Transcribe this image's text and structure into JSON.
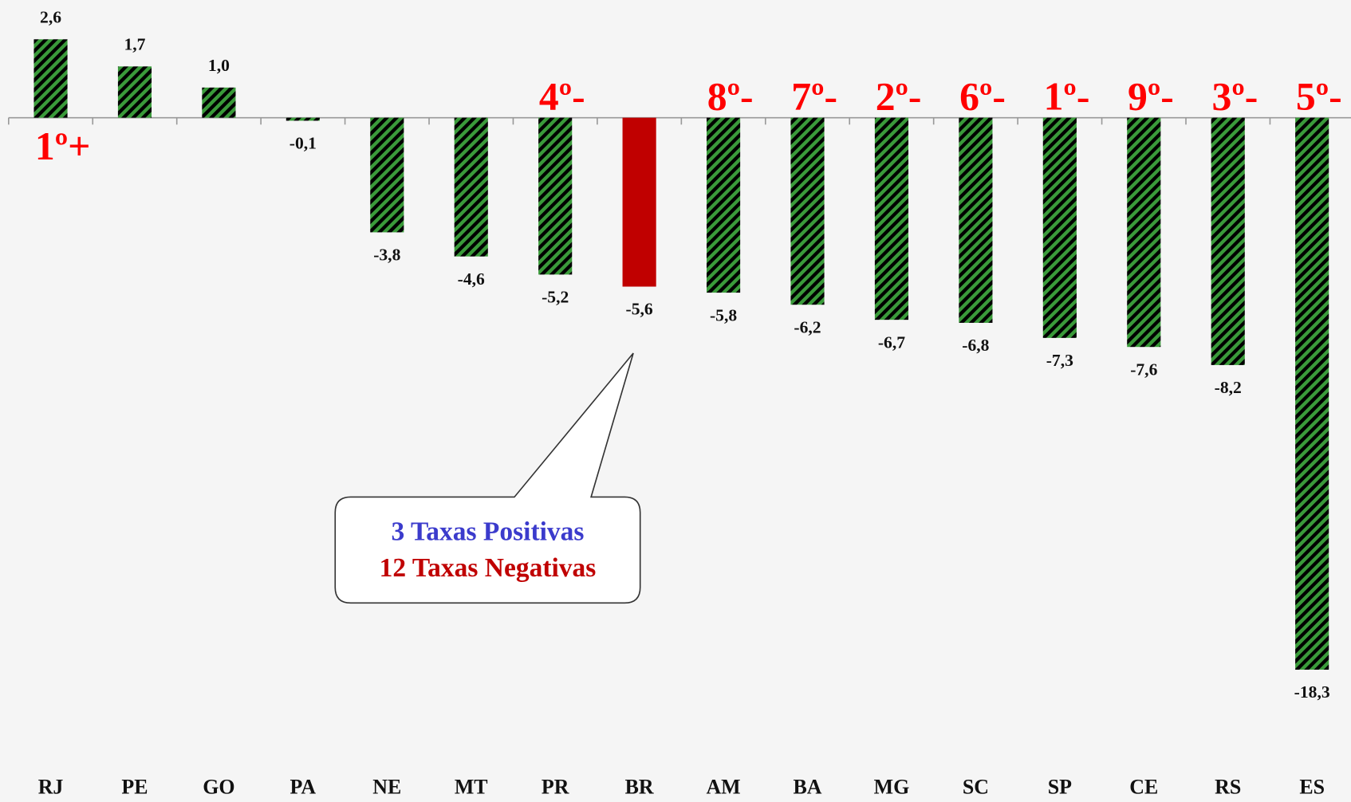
{
  "chart_data": {
    "type": "bar",
    "categories": [
      "RJ",
      "PE",
      "GO",
      "PA",
      "NE",
      "MT",
      "PR",
      "BR",
      "AM",
      "BA",
      "MG",
      "SC",
      "SP",
      "CE",
      "RS",
      "ES"
    ],
    "values": [
      2.6,
      1.7,
      1.0,
      -0.1,
      -3.8,
      -4.6,
      -5.2,
      -5.6,
      -5.8,
      -6.2,
      -6.7,
      -6.8,
      -7.3,
      -7.6,
      -8.2,
      -18.3
    ],
    "value_labels": [
      "2,6",
      "1,7",
      "1,0",
      "-0,1",
      "-3,8",
      "-4,6",
      "-5,2",
      "-5,6",
      "-5,8",
      "-6,2",
      "-6,7",
      "-6,8",
      "-7,3",
      "-7,6",
      "-8,2",
      "-18,3"
    ],
    "colors": [
      "#3a9a3a",
      "#3a9a3a",
      "#3a9a3a",
      "#3a9a3a",
      "#3a9a3a",
      "#3a9a3a",
      "#3a9a3a",
      "#c00000",
      "#3a9a3a",
      "#3a9a3a",
      "#3a9a3a",
      "#3a9a3a",
      "#3a9a3a",
      "#3a9a3a",
      "#3a9a3a",
      "#3a9a3a"
    ],
    "hatched": [
      true,
      true,
      true,
      true,
      true,
      true,
      true,
      false,
      true,
      true,
      true,
      true,
      true,
      true,
      true,
      true
    ],
    "rank_labels": [
      "1º+",
      null,
      null,
      null,
      null,
      null,
      "4º-",
      null,
      "8º-",
      "7º-",
      "2º-",
      "6º-",
      "1º-",
      "9º-",
      "3º-",
      "5º-"
    ],
    "annotation": {
      "lines": [
        {
          "text": "3 Taxas Positivas",
          "color": "#3b3bcc"
        },
        {
          "text": "12 Taxas Negativas",
          "color": "#c00000"
        }
      ]
    },
    "ylim": [
      -20,
      3.9
    ]
  }
}
